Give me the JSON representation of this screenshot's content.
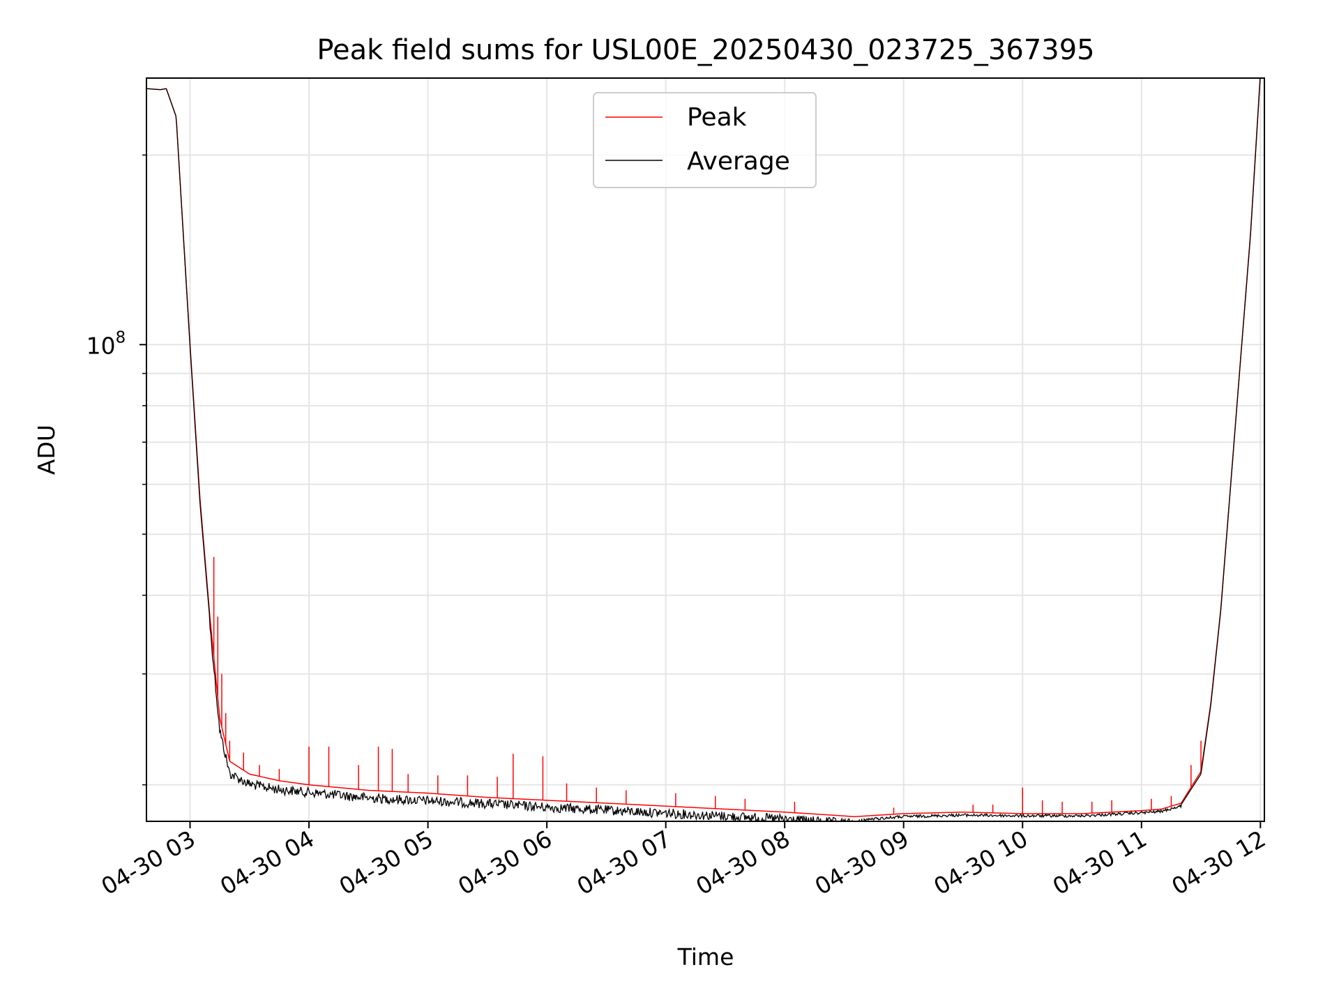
{
  "chart_data": {
    "type": "line",
    "title": "Peak field sums for USL00E_20250430_023725_367395",
    "xlabel": "Time",
    "ylabel": "ADU",
    "yscale": "log",
    "grid": true,
    "legend_position": "top-center",
    "xlim": [
      "2025-04-30T02:38",
      "2025-04-30T12:02"
    ],
    "ylim": [
      17500000,
      265000000
    ],
    "x_ticks": [
      "2025-04-30T03:00",
      "2025-04-30T04:00",
      "2025-04-30T05:00",
      "2025-04-30T06:00",
      "2025-04-30T07:00",
      "2025-04-30T08:00",
      "2025-04-30T09:00",
      "2025-04-30T10:00",
      "2025-04-30T11:00",
      "2025-04-30T12:00"
    ],
    "x_tick_labels": [
      "04-30 03",
      "04-30 04",
      "04-30 05",
      "04-30 06",
      "04-30 07",
      "04-30 08",
      "04-30 09",
      "04-30 10",
      "04-30 11",
      "04-30 12"
    ],
    "y_tick_labels": [
      {
        "base": "10",
        "exp": "8",
        "value": 100000000
      }
    ],
    "colors": {
      "peak": "#ff0000",
      "average": "#000000"
    },
    "series": [
      {
        "name": "Peak",
        "color": "#ff0000",
        "x": [
          "2025-04-30T02:38",
          "2025-04-30T02:45",
          "2025-04-30T02:48",
          "2025-04-30T02:53",
          "2025-04-30T03:00",
          "2025-04-30T03:05",
          "2025-04-30T03:10",
          "2025-04-30T03:15",
          "2025-04-30T03:20",
          "2025-04-30T03:30",
          "2025-04-30T03:45",
          "2025-04-30T04:00",
          "2025-04-30T04:30",
          "2025-04-30T05:00",
          "2025-04-30T05:30",
          "2025-04-30T06:00",
          "2025-04-30T06:30",
          "2025-04-30T07:00",
          "2025-04-30T07:30",
          "2025-04-30T08:00",
          "2025-04-30T08:30",
          "2025-04-30T08:35",
          "2025-04-30T09:00",
          "2025-04-30T09:30",
          "2025-04-30T10:00",
          "2025-04-30T10:30",
          "2025-04-30T11:00",
          "2025-04-30T11:10",
          "2025-04-30T11:20",
          "2025-04-30T11:30",
          "2025-04-30T11:35",
          "2025-04-30T11:40",
          "2025-04-30T11:45",
          "2025-04-30T11:50",
          "2025-04-30T11:55",
          "2025-04-30T12:00"
        ],
        "y": [
          255000000,
          254000000,
          255000000,
          230000000,
          100000000,
          57000000,
          37000000,
          25500000,
          21800000,
          20800000,
          20300000,
          20000000,
          19600000,
          19400000,
          19100000,
          18900000,
          18700000,
          18500000,
          18300000,
          18100000,
          17850000,
          17800000,
          18000000,
          18100000,
          18000000,
          18000000,
          18200000,
          18300000,
          18700000,
          21000000,
          27000000,
          38000000,
          60000000,
          95000000,
          150000000,
          270000000
        ],
        "spikes": [
          {
            "x": "2025-04-30T03:12",
            "y": 46000000
          },
          {
            "x": "2025-04-30T03:14",
            "y": 37000000
          },
          {
            "x": "2025-04-30T03:16",
            "y": 30000000
          },
          {
            "x": "2025-04-30T03:18",
            "y": 26000000
          },
          {
            "x": "2025-04-30T03:20",
            "y": 23500000
          },
          {
            "x": "2025-04-30T03:27",
            "y": 22500000
          },
          {
            "x": "2025-04-30T03:35",
            "y": 21500000
          },
          {
            "x": "2025-04-30T03:45",
            "y": 21200000
          },
          {
            "x": "2025-04-30T04:00",
            "y": 23000000
          },
          {
            "x": "2025-04-30T04:10",
            "y": 23000000
          },
          {
            "x": "2025-04-30T04:25",
            "y": 21500000
          },
          {
            "x": "2025-04-30T04:35",
            "y": 23000000
          },
          {
            "x": "2025-04-30T04:42",
            "y": 22800000
          },
          {
            "x": "2025-04-30T04:50",
            "y": 20800000
          },
          {
            "x": "2025-04-30T05:05",
            "y": 20700000
          },
          {
            "x": "2025-04-30T05:20",
            "y": 20700000
          },
          {
            "x": "2025-04-30T05:35",
            "y": 20600000
          },
          {
            "x": "2025-04-30T05:43",
            "y": 22400000
          },
          {
            "x": "2025-04-30T05:58",
            "y": 22200000
          },
          {
            "x": "2025-04-30T06:10",
            "y": 20100000
          },
          {
            "x": "2025-04-30T06:25",
            "y": 19800000
          },
          {
            "x": "2025-04-30T06:40",
            "y": 19600000
          },
          {
            "x": "2025-04-30T07:05",
            "y": 19400000
          },
          {
            "x": "2025-04-30T07:25",
            "y": 19200000
          },
          {
            "x": "2025-04-30T07:40",
            "y": 19000000
          },
          {
            "x": "2025-04-30T08:05",
            "y": 18800000
          },
          {
            "x": "2025-04-30T08:55",
            "y": 18400000
          },
          {
            "x": "2025-04-30T09:35",
            "y": 18600000
          },
          {
            "x": "2025-04-30T09:45",
            "y": 18600000
          },
          {
            "x": "2025-04-30T10:00",
            "y": 19800000
          },
          {
            "x": "2025-04-30T10:10",
            "y": 18900000
          },
          {
            "x": "2025-04-30T10:20",
            "y": 18800000
          },
          {
            "x": "2025-04-30T10:35",
            "y": 18800000
          },
          {
            "x": "2025-04-30T10:45",
            "y": 18900000
          },
          {
            "x": "2025-04-30T11:05",
            "y": 19000000
          },
          {
            "x": "2025-04-30T11:15",
            "y": 19200000
          },
          {
            "x": "2025-04-30T11:25",
            "y": 21500000
          },
          {
            "x": "2025-04-30T11:30",
            "y": 23500000
          }
        ]
      },
      {
        "name": "Average",
        "color": "#000000",
        "x": [
          "2025-04-30T02:38",
          "2025-04-30T02:45",
          "2025-04-30T02:48",
          "2025-04-30T02:53",
          "2025-04-30T03:00",
          "2025-04-30T03:05",
          "2025-04-30T03:10",
          "2025-04-30T03:15",
          "2025-04-30T03:20",
          "2025-04-30T03:30",
          "2025-04-30T03:45",
          "2025-04-30T04:00",
          "2025-04-30T04:30",
          "2025-04-30T05:00",
          "2025-04-30T05:30",
          "2025-04-30T06:00",
          "2025-04-30T06:30",
          "2025-04-30T07:00",
          "2025-04-30T07:30",
          "2025-04-30T08:00",
          "2025-04-30T08:30",
          "2025-04-30T08:35",
          "2025-04-30T09:00",
          "2025-04-30T09:30",
          "2025-04-30T10:00",
          "2025-04-30T10:30",
          "2025-04-30T11:00",
          "2025-04-30T11:10",
          "2025-04-30T11:20",
          "2025-04-30T11:30",
          "2025-04-30T11:35",
          "2025-04-30T11:40",
          "2025-04-30T11:45",
          "2025-04-30T11:50",
          "2025-04-30T11:55",
          "2025-04-30T12:00"
        ],
        "y": [
          255000000,
          254000000,
          255000000,
          230000000,
          99000000,
          56000000,
          36500000,
          24800000,
          21200000,
          20400000,
          20000000,
          19800000,
          19400000,
          19200000,
          19000000,
          18750000,
          18550000,
          18350000,
          18150000,
          17950000,
          17700000,
          17650000,
          17900000,
          18000000,
          17950000,
          17950000,
          18150000,
          18250000,
          18600000,
          20800000,
          26800000,
          37800000,
          59800000,
          94800000,
          149000000,
          268000000
        ],
        "noise_amplitude": 0.035
      }
    ]
  }
}
